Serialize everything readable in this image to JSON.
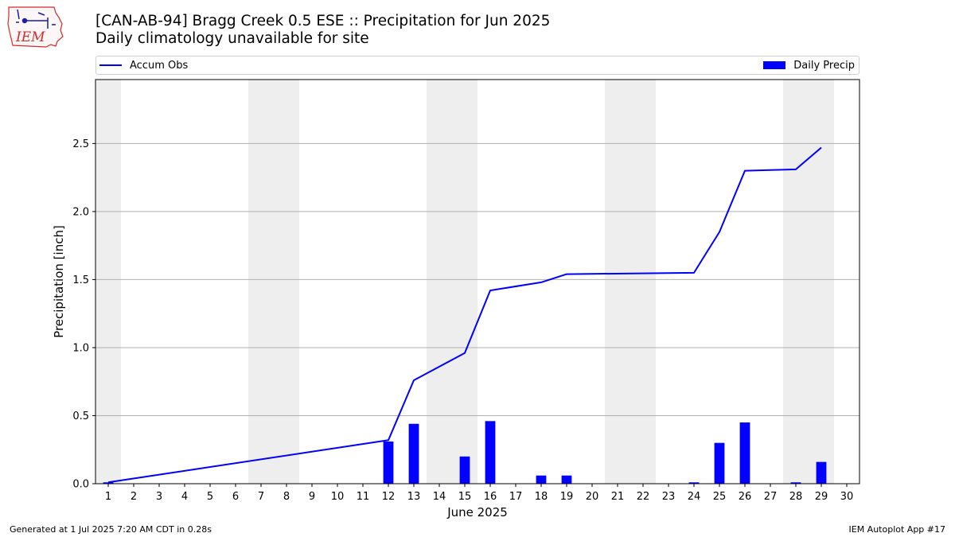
{
  "header": {
    "title": "[CAN-AB-94] Bragg Creek 0.5 ESE :: Precipitation for Jun 2025",
    "subtitle": "Daily climatology unavailable for site",
    "logo_text": "IEM"
  },
  "colors": {
    "accent": "#0000ff",
    "weekend_shade": "#eeeeee",
    "grid": "#b0b0b0",
    "logo_red": "#d42b2b"
  },
  "chart_data": {
    "type": "bar",
    "xlabel": "June 2025",
    "ylabel": "Precipitation [inch]",
    "xlim": [
      0.5,
      30.5
    ],
    "ylim": [
      0,
      2.97
    ],
    "yticks": [
      0.0,
      0.5,
      1.0,
      1.5,
      2.0,
      2.5
    ],
    "ytick_labels": [
      "0.0",
      "0.5",
      "1.0",
      "1.5",
      "2.0",
      "2.5"
    ],
    "categories": [
      "1",
      "2",
      "3",
      "4",
      "5",
      "6",
      "7",
      "8",
      "9",
      "10",
      "11",
      "12",
      "13",
      "14",
      "15",
      "16",
      "17",
      "18",
      "19",
      "20",
      "21",
      "22",
      "23",
      "24",
      "25",
      "26",
      "27",
      "28",
      "29",
      "30"
    ],
    "weekend_days": [
      1,
      7,
      8,
      14,
      15,
      21,
      22,
      28,
      29
    ],
    "grid": "y",
    "legend_placement": "top",
    "series": [
      {
        "name": "Daily Precip",
        "type": "bar",
        "x": [
          1,
          12,
          13,
          15,
          16,
          18,
          19,
          24,
          25,
          26,
          28,
          29
        ],
        "values": [
          0.01,
          0.31,
          0.44,
          0.2,
          0.46,
          0.06,
          0.06,
          0.01,
          0.3,
          0.45,
          0.01,
          0.16
        ]
      },
      {
        "name": "Accum Obs",
        "type": "line",
        "x": [
          1,
          12,
          13,
          15,
          16,
          18,
          19,
          24,
          25,
          26,
          28,
          29
        ],
        "values": [
          0.01,
          0.32,
          0.76,
          0.96,
          1.42,
          1.48,
          1.54,
          1.55,
          1.85,
          2.3,
          2.31,
          2.47
        ]
      }
    ]
  },
  "footer": {
    "generated": "Generated at 1 Jul 2025 7:20 AM CDT in 0.28s",
    "app": "IEM Autoplot App #17"
  }
}
